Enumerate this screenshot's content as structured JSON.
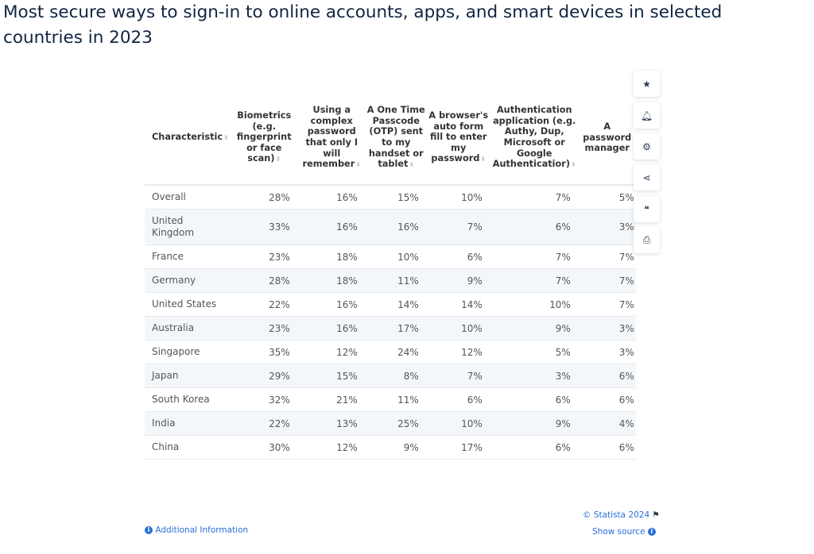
{
  "title": "Most secure ways to sign-in to online accounts, apps, and smart devices in selected countries in 2023",
  "chart_data": {
    "type": "table",
    "columns": [
      "Characteristic",
      "Biometrics (e.g. fingerprint or face scan)",
      "Using a complex password that only I will remember",
      "A One Time Passcode (OTP) sent to my handset or tablet",
      "A browser's auto form fill to enter my password",
      "Authentication application (e.g. Authy, Dup, Microsoft or Google Authenticatior)",
      "A password manager"
    ],
    "rows": [
      [
        "Overall",
        "28%",
        "16%",
        "15%",
        "10%",
        "7%",
        "5%"
      ],
      [
        "United Kingdom",
        "33%",
        "16%",
        "16%",
        "7%",
        "6%",
        "3%"
      ],
      [
        "France",
        "23%",
        "18%",
        "10%",
        "6%",
        "7%",
        "7%"
      ],
      [
        "Germany",
        "28%",
        "18%",
        "11%",
        "9%",
        "7%",
        "7%"
      ],
      [
        "United States",
        "22%",
        "16%",
        "14%",
        "14%",
        "10%",
        "7%"
      ],
      [
        "Australia",
        "23%",
        "16%",
        "17%",
        "10%",
        "9%",
        "3%"
      ],
      [
        "Singapore",
        "35%",
        "12%",
        "24%",
        "12%",
        "5%",
        "3%"
      ],
      [
        "Japan",
        "29%",
        "15%",
        "8%",
        "7%",
        "3%",
        "6%"
      ],
      [
        "South Korea",
        "32%",
        "21%",
        "11%",
        "6%",
        "6%",
        "6%"
      ],
      [
        "India",
        "22%",
        "13%",
        "25%",
        "10%",
        "9%",
        "4%"
      ],
      [
        "China",
        "30%",
        "12%",
        "9%",
        "17%",
        "6%",
        "6%"
      ]
    ]
  },
  "sidebar": [
    "star-icon",
    "bell-icon",
    "gear-icon",
    "share-icon",
    "quote-icon",
    "print-icon"
  ],
  "footer": {
    "copyright": "© Statista 2024",
    "additional": "Additional Information",
    "source": "Show source"
  },
  "accent": "#2a6fd6"
}
